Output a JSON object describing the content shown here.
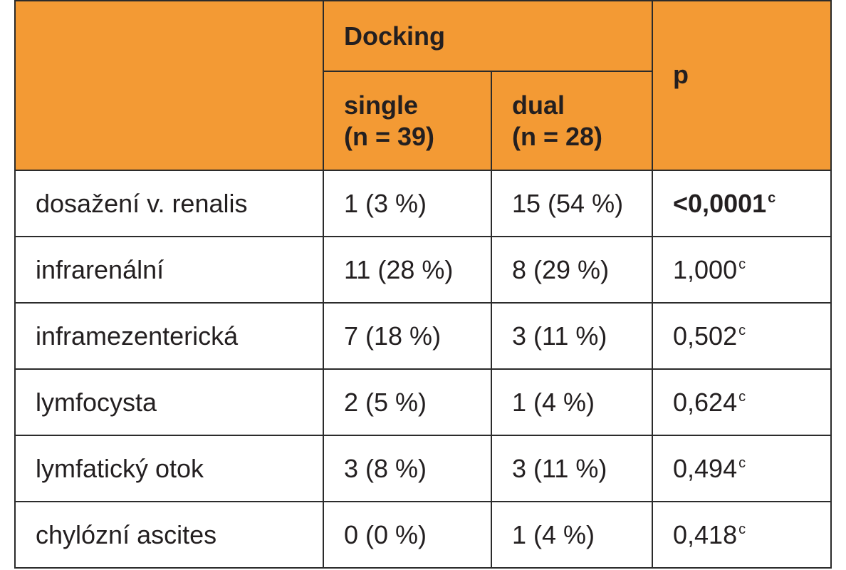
{
  "header": {
    "group_label": "Docking",
    "p_label": "p",
    "single_label": "single",
    "single_n": "(n = 39)",
    "dual_label": "dual",
    "dual_n": "(n = 28)"
  },
  "rows": [
    {
      "label": "dosažení v. renalis",
      "single": "1 (3 %)",
      "dual": "15 (54 %)",
      "p": "<0,0001",
      "p_note": "c",
      "p_bold": true
    },
    {
      "label": "infrarenální",
      "single": "11 (28 %)",
      "dual": "8 (29 %)",
      "p": "1,000",
      "p_note": "c",
      "p_bold": false
    },
    {
      "label": "inframezenterická",
      "single": "7 (18 %)",
      "dual": "3 (11 %)",
      "p": "0,502",
      "p_note": "c",
      "p_bold": false
    },
    {
      "label": "lymfocysta",
      "single": "2 (5 %)",
      "dual": "1 (4 %)",
      "p": "0,624",
      "p_note": "c",
      "p_bold": false
    },
    {
      "label": "lymfatický otok",
      "single": "3 (8 %)",
      "dual": "3 (11 %)",
      "p": "0,494",
      "p_note": "c",
      "p_bold": false
    },
    {
      "label": "chylózní ascites",
      "single": "0 (0 %)",
      "dual": "1 (4 %)",
      "p": "0,418",
      "p_note": "c",
      "p_bold": false
    }
  ],
  "colors": {
    "header_bg": "#f39a34",
    "border": "#2b2b2b",
    "text": "#231f20"
  }
}
